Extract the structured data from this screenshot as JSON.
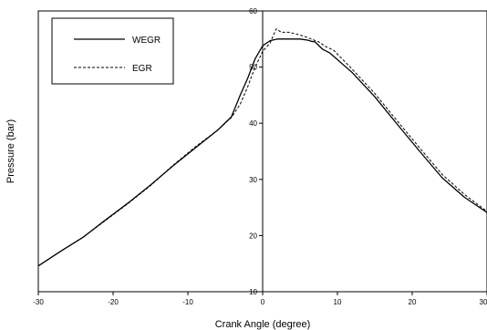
{
  "chart_data": {
    "type": "line",
    "title": "",
    "xlabel": "Crank Angle (degree)",
    "ylabel": "Pressure (bar)",
    "xlim": [
      -30,
      30
    ],
    "ylim": [
      10,
      60
    ],
    "x_ticks": [
      -30,
      -20,
      -10,
      0,
      10,
      20,
      30
    ],
    "y_ticks": [
      10,
      20,
      30,
      40,
      50,
      60
    ],
    "grid": false,
    "legend_position": "top-left",
    "series": [
      {
        "name": "WEGR",
        "style": "solid",
        "color": "#000000",
        "x": [
          -30,
          -27,
          -24,
          -21,
          -18,
          -15,
          -12,
          -9,
          -6,
          -4.2,
          -3,
          -2,
          -1,
          0,
          1,
          2,
          3,
          4,
          5,
          6,
          6.5,
          7,
          8,
          9,
          12,
          15,
          18,
          21,
          24,
          27,
          30
        ],
        "y": [
          14.6,
          17.2,
          19.7,
          22.8,
          25.8,
          29.0,
          32.4,
          35.6,
          38.8,
          41.1,
          45.0,
          48.0,
          51.5,
          53.8,
          54.7,
          55.0,
          55.0,
          55.0,
          55.0,
          54.8,
          54.6,
          54.5,
          53.2,
          52.5,
          49.0,
          44.7,
          39.8,
          35.0,
          30.3,
          26.8,
          24.1
        ]
      },
      {
        "name": "EGR",
        "style": "dashed",
        "color": "#000000",
        "x": [
          -30,
          -27,
          -24,
          -21,
          -18,
          -15,
          -12,
          -9,
          -6,
          -4.2,
          -3,
          -2,
          -1,
          0,
          1,
          1.8,
          2.5,
          3.5,
          4.5,
          5.5,
          6.5,
          7.5,
          8.5,
          9.5,
          12,
          15,
          18,
          21,
          24,
          27,
          30
        ],
        "y": [
          14.6,
          17.2,
          19.7,
          22.7,
          25.7,
          28.9,
          32.5,
          35.8,
          38.8,
          41.0,
          43.4,
          46.5,
          50.0,
          52.8,
          54.3,
          56.8,
          56.2,
          56.2,
          55.9,
          55.5,
          55.0,
          54.5,
          53.6,
          53.0,
          49.6,
          45.3,
          40.4,
          35.6,
          30.9,
          27.3,
          24.3
        ]
      }
    ]
  }
}
